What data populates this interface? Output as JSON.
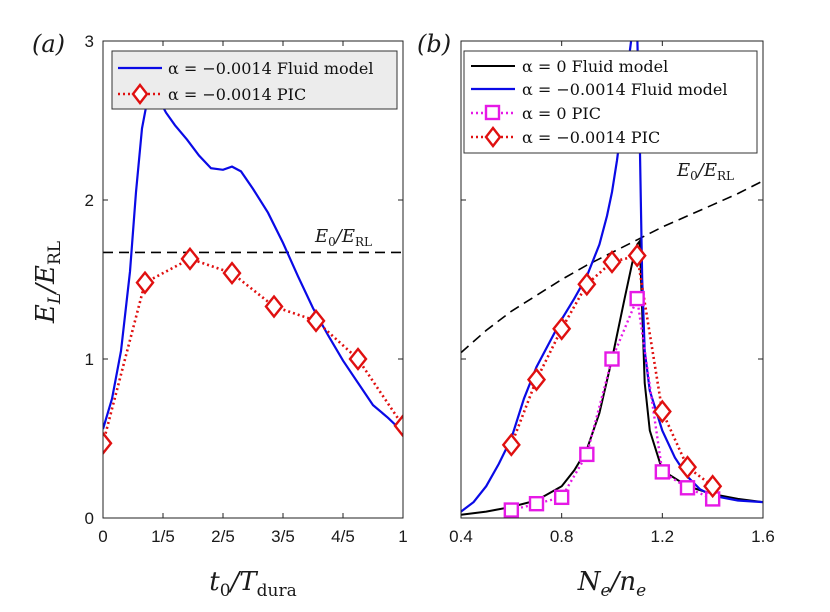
{
  "colors": {
    "blue": "#0a0ae6",
    "black": "#000000",
    "red": "#e01010",
    "magenta": "#e619e6",
    "dash": "#000000"
  },
  "chart_data": [
    {
      "type": "line",
      "panel_label": "(a)",
      "xlabel": "t₀/T_dura",
      "ylabel": "E_L/E_RL",
      "xlim": [
        0,
        1
      ],
      "ylim": [
        0,
        3
      ],
      "xticks": [
        0,
        0.2,
        0.4,
        0.6,
        0.8,
        1
      ],
      "xtick_labels": [
        "0",
        "1/5",
        "2/5",
        "3/5",
        "4/5",
        "1"
      ],
      "yticks": [
        0,
        1,
        2,
        3
      ],
      "ytick_labels": [
        "0",
        "1",
        "2",
        "3"
      ],
      "legend": [
        "α = −0.0014 Fluid model",
        "α = −0.0014 PIC"
      ],
      "annotation": "E₀/E_RL",
      "reference_line": {
        "name": "E₀/E_RL",
        "y": 1.67
      },
      "series": [
        {
          "name": "α = −0.0014 Fluid model",
          "style": "solid-blue",
          "x": [
            0,
            0.03,
            0.06,
            0.09,
            0.11,
            0.13,
            0.15,
            0.17,
            0.19,
            0.21,
            0.24,
            0.28,
            0.32,
            0.36,
            0.4,
            0.43,
            0.46,
            0.5,
            0.55,
            0.6,
            0.65,
            0.7,
            0.75,
            0.8,
            0.85,
            0.9,
            0.95,
            1.0
          ],
          "y": [
            0.56,
            0.75,
            1.05,
            1.55,
            2.05,
            2.45,
            2.65,
            2.67,
            2.62,
            2.55,
            2.47,
            2.38,
            2.28,
            2.2,
            2.19,
            2.21,
            2.18,
            2.07,
            1.92,
            1.73,
            1.52,
            1.32,
            1.15,
            0.99,
            0.85,
            0.71,
            0.63,
            0.54
          ]
        },
        {
          "name": "α = −0.0014 PIC",
          "style": "dotted-red-diamond",
          "x": [
            0,
            0.14,
            0.29,
            0.43,
            0.57,
            0.71,
            0.85,
            1.0
          ],
          "y": [
            0.47,
            1.48,
            1.63,
            1.54,
            1.33,
            1.24,
            1.0,
            0.58
          ]
        }
      ]
    },
    {
      "type": "line",
      "panel_label": "(b)",
      "xlabel": "N_e/n_e",
      "ylabel": "",
      "xlim": [
        0.4,
        1.6
      ],
      "ylim": [
        0,
        3
      ],
      "xticks": [
        0.4,
        0.8,
        1.2,
        1.6
      ],
      "xtick_labels": [
        "0.4",
        "0.8",
        "1.2",
        "1.6"
      ],
      "legend": [
        "α = 0 Fluid model",
        "α = −0.0014 Fluid model",
        "α = 0 PIC",
        "α = −0.0014 PIC"
      ],
      "annotation": "E₀/E_RL",
      "series": [
        {
          "name": "α = 0 Fluid model",
          "style": "solid-black",
          "x": [
            0.4,
            0.5,
            0.6,
            0.7,
            0.8,
            0.85,
            0.9,
            0.95,
            1.0,
            1.05,
            1.08,
            1.1,
            1.11,
            1.12,
            1.13,
            1.15,
            1.2,
            1.3,
            1.4,
            1.5,
            1.6
          ],
          "y": [
            0.02,
            0.04,
            0.07,
            0.11,
            0.2,
            0.3,
            0.43,
            0.66,
            1.0,
            1.38,
            1.6,
            1.72,
            1.74,
            1.3,
            0.85,
            0.55,
            0.3,
            0.2,
            0.15,
            0.12,
            0.1
          ]
        },
        {
          "name": "α = −0.0014 Fluid model",
          "style": "solid-blue",
          "x": [
            0.4,
            0.45,
            0.5,
            0.55,
            0.6,
            0.65,
            0.7,
            0.75,
            0.8,
            0.85,
            0.9,
            0.95,
            0.98,
            1.0,
            1.02,
            1.04,
            1.06,
            1.08,
            1.1,
            1.11,
            1.12,
            1.13,
            1.15,
            1.2,
            1.25,
            1.3,
            1.35,
            1.4,
            1.5,
            1.6
          ],
          "y": [
            0.04,
            0.1,
            0.2,
            0.34,
            0.5,
            0.75,
            0.95,
            1.1,
            1.25,
            1.38,
            1.52,
            1.72,
            1.9,
            2.05,
            2.25,
            2.5,
            2.8,
            3.05,
            3.05,
            2.4,
            1.5,
            1.05,
            0.8,
            0.55,
            0.38,
            0.26,
            0.18,
            0.14,
            0.11,
            0.1
          ]
        },
        {
          "name": "E₀/E_RL",
          "style": "dashed-black",
          "x": [
            0.4,
            0.5,
            0.6,
            0.7,
            0.8,
            0.9,
            1.0,
            1.1,
            1.2,
            1.3,
            1.4,
            1.5,
            1.6
          ],
          "y": [
            1.04,
            1.18,
            1.3,
            1.4,
            1.5,
            1.59,
            1.67,
            1.75,
            1.83,
            1.9,
            1.97,
            2.04,
            2.12
          ]
        },
        {
          "name": "α = 0 PIC",
          "style": "dotted-magenta-square",
          "x": [
            0.6,
            0.7,
            0.8,
            0.9,
            1.0,
            1.1,
            1.2,
            1.3,
            1.4
          ],
          "y": [
            0.05,
            0.09,
            0.13,
            0.4,
            1.0,
            1.38,
            0.29,
            0.19,
            0.12
          ]
        },
        {
          "name": "α = −0.0014 PIC",
          "style": "dotted-red-diamond",
          "x": [
            0.6,
            0.7,
            0.8,
            0.9,
            1.0,
            1.1,
            1.2,
            1.3,
            1.4
          ],
          "y": [
            0.46,
            0.87,
            1.19,
            1.47,
            1.61,
            1.65,
            0.67,
            0.32,
            0.2
          ]
        }
      ]
    }
  ]
}
